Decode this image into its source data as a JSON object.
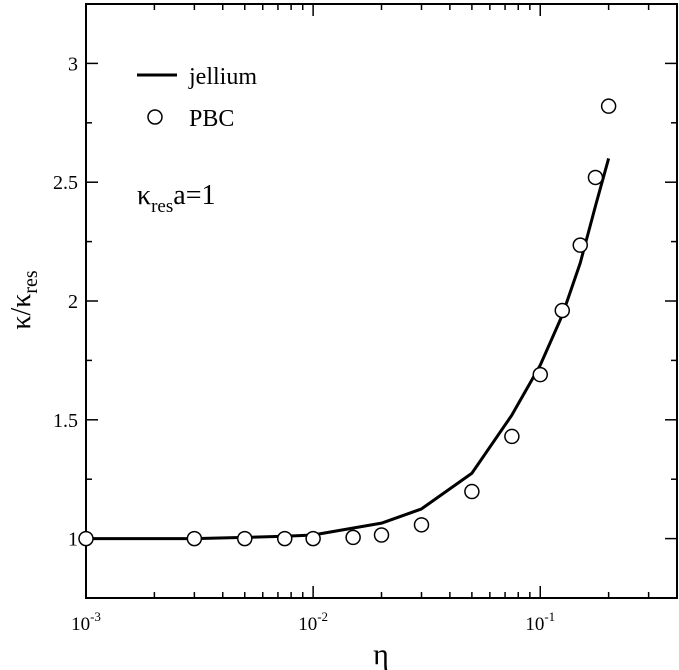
{
  "chart_data": {
    "type": "line",
    "x_scale": "log",
    "xlim": [
      0.001,
      0.4
    ],
    "ylim": [
      0.75,
      3.25
    ],
    "grid": false,
    "xlabel": "η",
    "ylabel": {
      "base": "κ/κ",
      "sub": "res"
    },
    "x_ticks": [
      {
        "value": 0.001,
        "base": "10",
        "exp": "-3"
      },
      {
        "value": 0.01,
        "base": "10",
        "exp": "-2"
      },
      {
        "value": 0.1,
        "base": "10",
        "exp": "-1"
      }
    ],
    "y_ticks": [
      {
        "value": 1,
        "label": "1"
      },
      {
        "value": 1.5,
        "label": "1.5"
      },
      {
        "value": 2,
        "label": "2"
      },
      {
        "value": 2.5,
        "label": "2.5"
      },
      {
        "value": 3,
        "label": "3"
      }
    ],
    "legend_position": "top-left",
    "series": [
      {
        "name": "jellium",
        "style": "line",
        "x": [
          0.001,
          0.003,
          0.005,
          0.0075,
          0.01,
          0.02,
          0.03,
          0.05,
          0.075,
          0.1,
          0.125,
          0.15,
          0.175,
          0.2
        ],
        "y": [
          1.0,
          1.0,
          1.005,
          1.01,
          1.015,
          1.065,
          1.125,
          1.275,
          1.52,
          1.73,
          1.94,
          2.16,
          2.4,
          2.6
        ]
      },
      {
        "name": "PBC",
        "style": "open-circle",
        "x": [
          0.001,
          0.003,
          0.005,
          0.0075,
          0.01,
          0.015,
          0.02,
          0.03,
          0.05,
          0.075,
          0.1,
          0.125,
          0.15,
          0.175,
          0.2
        ],
        "y": [
          1.0,
          1.0,
          1.0,
          1.0,
          1.0,
          1.005,
          1.015,
          1.058,
          1.198,
          1.43,
          1.69,
          1.96,
          2.235,
          2.52,
          2.82
        ]
      }
    ],
    "annotation": {
      "base": "κ",
      "sub": "res",
      "rest": "a=1"
    }
  },
  "colors": {
    "line": "#000000",
    "marker_stroke": "#000000",
    "marker_fill": "#ffffff",
    "background": "#ffffff"
  }
}
